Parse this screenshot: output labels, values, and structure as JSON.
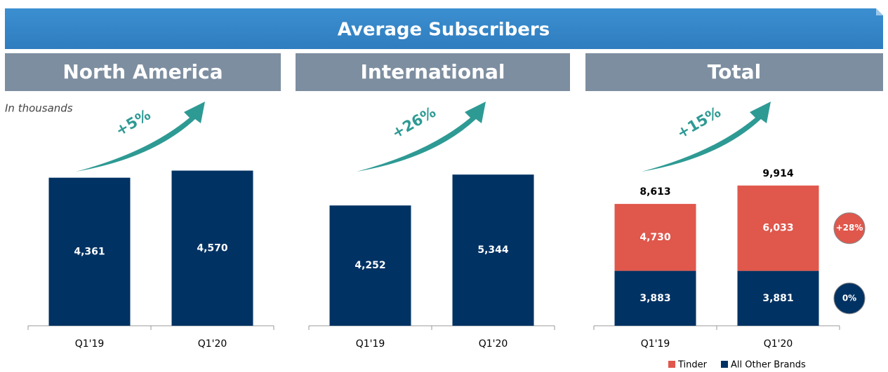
{
  "title": "Average Subscribers",
  "subtitle": "In thousands",
  "chart_data": [
    {
      "type": "bar",
      "title": "North America",
      "categories": [
        "Q1'19",
        "Q1'20"
      ],
      "values": [
        4361,
        4570
      ],
      "value_labels": [
        "4,361",
        "4,570"
      ],
      "color": "#003263",
      "ylim": [
        0,
        6500
      ],
      "growth": "+5%"
    },
    {
      "type": "bar",
      "title": "International",
      "categories": [
        "Q1'19",
        "Q1'20"
      ],
      "values": [
        4252,
        5344
      ],
      "value_labels": [
        "4,252",
        "5,344"
      ],
      "color": "#003263",
      "ylim": [
        0,
        7800
      ],
      "growth": "+26%"
    },
    {
      "type": "stacked_bar",
      "title": "Total",
      "categories": [
        "Q1'19",
        "Q1'20"
      ],
      "series": [
        {
          "name": "Tinder",
          "color": "#e0574c",
          "values": [
            4730,
            6033
          ],
          "value_labels": [
            "4,730",
            "6,033"
          ],
          "change": "+28%"
        },
        {
          "name": "All Other Brands",
          "color": "#003263",
          "values": [
            3883,
            3881
          ],
          "value_labels": [
            "3,883",
            "3,881"
          ],
          "change": "0%"
        }
      ],
      "totals": [
        8613,
        9914
      ],
      "total_labels": [
        "8,613",
        "9,914"
      ],
      "ylim": [
        0,
        15600
      ],
      "growth": "+15%",
      "legend": "bottom-right"
    }
  ]
}
